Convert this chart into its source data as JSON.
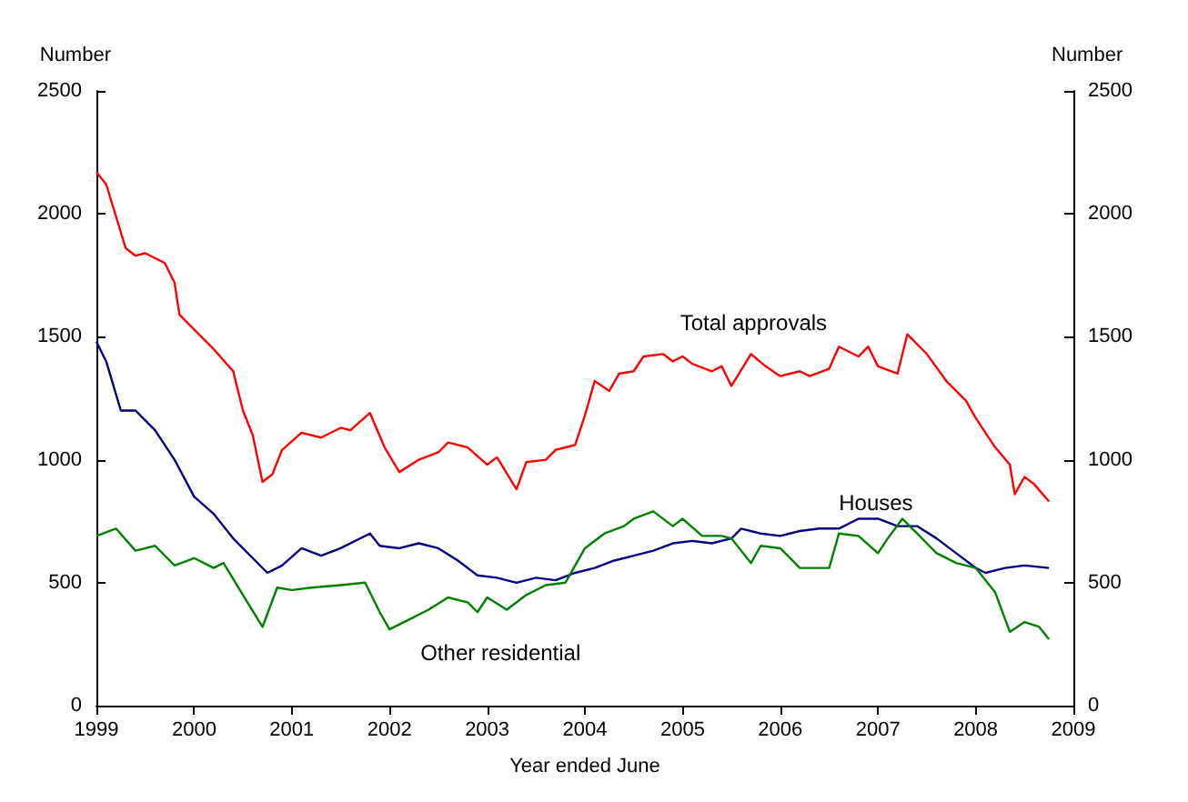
{
  "chart_data": {
    "type": "line",
    "xlabel": "Year ended June",
    "ylabel": "Number",
    "y2label": "Number",
    "xlim": [
      1999,
      2009
    ],
    "xticks": [
      1999,
      2000,
      2001,
      2002,
      2003,
      2004,
      2005,
      2006,
      2007,
      2008,
      2009
    ],
    "ylim": [
      0,
      2500
    ],
    "yticks": [
      0,
      500,
      1000,
      1500,
      2000,
      2500
    ],
    "y2lim": [
      0,
      2500
    ],
    "y2ticks": [
      0,
      500,
      1000,
      1500,
      2000,
      2500
    ],
    "grid": false,
    "legend": false,
    "marker": "none",
    "line_style": "solid",
    "series": [
      {
        "name": "Total approvals",
        "color": "#ff0000",
        "x": [
          1999.0,
          1999.1,
          1999.3,
          1999.4,
          1999.5,
          1999.7,
          1999.8,
          1999.85,
          2000.0,
          2000.2,
          2000.4,
          2000.5,
          2000.6,
          2000.7,
          2000.8,
          2000.9,
          2001.1,
          2001.3,
          2001.5,
          2001.6,
          2001.8,
          2001.95,
          2002.1,
          2002.3,
          2002.5,
          2002.6,
          2002.8,
          2003.0,
          2003.1,
          2003.3,
          2003.4,
          2003.6,
          2003.7,
          2003.9,
          2004.0,
          2004.1,
          2004.25,
          2004.35,
          2004.5,
          2004.6,
          2004.8,
          2004.9,
          2005.0,
          2005.1,
          2005.3,
          2005.4,
          2005.5,
          2005.7,
          2005.85,
          2006.0,
          2006.2,
          2006.3,
          2006.5,
          2006.6,
          2006.8,
          2006.9,
          2007.0,
          2007.2,
          2007.3,
          2007.5,
          2007.7,
          2007.9,
          2008.0,
          2008.2,
          2008.35,
          2008.4,
          2008.5,
          2008.6,
          2008.75
        ],
        "values": [
          2170,
          2120,
          1860,
          1830,
          1840,
          1800,
          1720,
          1590,
          1530,
          1450,
          1360,
          1200,
          1100,
          910,
          940,
          1040,
          1110,
          1090,
          1130,
          1120,
          1190,
          1050,
          950,
          1000,
          1030,
          1070,
          1050,
          980,
          1010,
          880,
          990,
          1000,
          1040,
          1060,
          1180,
          1320,
          1280,
          1350,
          1360,
          1420,
          1430,
          1400,
          1420,
          1390,
          1360,
          1380,
          1300,
          1430,
          1380,
          1340,
          1360,
          1340,
          1370,
          1460,
          1420,
          1460,
          1380,
          1350,
          1510,
          1430,
          1320,
          1240,
          1170,
          1050,
          980,
          860,
          930,
          900,
          830
        ]
      },
      {
        "name": "Houses",
        "color": "#000080",
        "x": [
          1999.0,
          1999.1,
          1999.25,
          1999.4,
          1999.6,
          1999.8,
          2000.0,
          2000.2,
          2000.4,
          2000.6,
          2000.75,
          2000.9,
          2001.1,
          2001.3,
          2001.5,
          2001.8,
          2001.9,
          2002.1,
          2002.3,
          2002.5,
          2002.7,
          2002.9,
          2003.1,
          2003.3,
          2003.5,
          2003.7,
          2003.9,
          2004.1,
          2004.3,
          2004.5,
          2004.7,
          2004.9,
          2005.1,
          2005.3,
          2005.5,
          2005.6,
          2005.8,
          2006.0,
          2006.2,
          2006.4,
          2006.6,
          2006.8,
          2007.0,
          2007.2,
          2007.4,
          2007.6,
          2007.8,
          2008.0,
          2008.1,
          2008.3,
          2008.5,
          2008.75
        ],
        "values": [
          1480,
          1400,
          1200,
          1200,
          1120,
          1000,
          850,
          780,
          680,
          600,
          540,
          570,
          640,
          610,
          640,
          700,
          650,
          640,
          660,
          640,
          590,
          530,
          520,
          500,
          520,
          510,
          540,
          560,
          590,
          610,
          630,
          660,
          670,
          660,
          680,
          720,
          700,
          690,
          710,
          720,
          720,
          760,
          760,
          730,
          730,
          680,
          620,
          560,
          540,
          560,
          570,
          560
        ]
      },
      {
        "name": "Other residential",
        "color": "#008000",
        "x": [
          1999.0,
          1999.2,
          1999.4,
          1999.6,
          1999.8,
          2000.0,
          2000.2,
          2000.3,
          2000.5,
          2000.7,
          2000.85,
          2001.0,
          2001.2,
          2001.5,
          2001.75,
          2001.9,
          2002.0,
          2002.2,
          2002.4,
          2002.6,
          2002.8,
          2002.9,
          2003.0,
          2003.2,
          2003.4,
          2003.6,
          2003.8,
          2004.0,
          2004.2,
          2004.4,
          2004.5,
          2004.7,
          2004.9,
          2005.0,
          2005.2,
          2005.4,
          2005.5,
          2005.7,
          2005.8,
          2006.0,
          2006.2,
          2006.4,
          2006.5,
          2006.6,
          2006.8,
          2007.0,
          2007.1,
          2007.25,
          2007.4,
          2007.6,
          2007.8,
          2008.0,
          2008.2,
          2008.35,
          2008.5,
          2008.65,
          2008.75
        ],
        "values": [
          690,
          720,
          630,
          650,
          570,
          600,
          560,
          580,
          450,
          320,
          480,
          470,
          480,
          490,
          500,
          380,
          310,
          350,
          390,
          440,
          420,
          380,
          440,
          390,
          450,
          490,
          500,
          640,
          700,
          730,
          760,
          790,
          730,
          760,
          690,
          690,
          680,
          580,
          650,
          640,
          560,
          560,
          560,
          700,
          690,
          620,
          680,
          760,
          700,
          620,
          580,
          560,
          460,
          300,
          340,
          320,
          270
        ]
      }
    ]
  }
}
